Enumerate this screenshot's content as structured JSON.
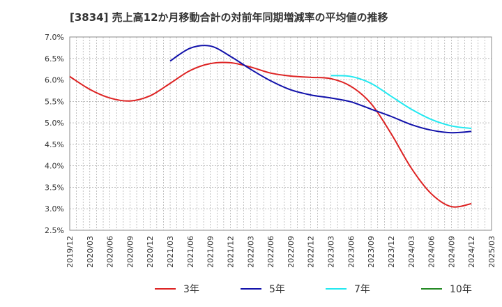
{
  "chart_data": {
    "type": "line",
    "title": "[3834]  売上高12か月移動合計の対前年同期増減率の平均値の推移",
    "xlabel": "",
    "ylabel": "",
    "x_ticks": [
      "2019/12",
      "2020/03",
      "2020/06",
      "2020/09",
      "2020/12",
      "2021/03",
      "2021/06",
      "2021/09",
      "2021/12",
      "2022/03",
      "2022/06",
      "2022/09",
      "2022/12",
      "2023/03",
      "2023/06",
      "2023/09",
      "2023/12",
      "2024/03",
      "2024/06",
      "2024/09",
      "2024/12",
      "2025/03"
    ],
    "y_ticks": [
      "2.5%",
      "3.0%",
      "3.5%",
      "4.0%",
      "4.5%",
      "5.0%",
      "5.5%",
      "6.0%",
      "6.5%",
      "7.0%"
    ],
    "ylim": [
      2.5,
      7.0
    ],
    "grid": true,
    "legend_position": "bottom",
    "series": [
      {
        "name": "3年",
        "color": "#dd2222",
        "x": [
          "2019/12",
          "2020/03",
          "2020/06",
          "2020/09",
          "2020/12",
          "2021/03",
          "2021/06",
          "2021/09",
          "2021/12",
          "2022/03",
          "2022/06",
          "2022/09",
          "2022/12",
          "2023/03",
          "2023/06",
          "2023/09",
          "2023/12",
          "2024/03",
          "2024/06",
          "2024/09",
          "2024/12"
        ],
        "values": [
          6.08,
          5.78,
          5.58,
          5.51,
          5.63,
          5.92,
          6.22,
          6.38,
          6.4,
          6.3,
          6.16,
          6.09,
          6.06,
          6.03,
          5.85,
          5.45,
          4.75,
          3.95,
          3.35,
          3.05,
          3.12
        ]
      },
      {
        "name": "5年",
        "color": "#1111aa",
        "x": [
          "2021/03",
          "2021/06",
          "2021/09",
          "2021/12",
          "2022/03",
          "2022/06",
          "2022/09",
          "2022/12",
          "2023/03",
          "2023/06",
          "2023/09",
          "2023/12",
          "2024/03",
          "2024/06",
          "2024/09",
          "2024/12"
        ],
        "values": [
          6.44,
          6.74,
          6.79,
          6.55,
          6.25,
          5.98,
          5.77,
          5.65,
          5.58,
          5.49,
          5.32,
          5.15,
          4.96,
          4.83,
          4.77,
          4.8
        ]
      },
      {
        "name": "7年",
        "color": "#22e8f0",
        "x": [
          "2023/03",
          "2023/06",
          "2023/09",
          "2023/12",
          "2024/03",
          "2024/06",
          "2024/09",
          "2024/12"
        ],
        "values": [
          6.1,
          6.08,
          5.92,
          5.62,
          5.32,
          5.08,
          4.93,
          4.87
        ]
      },
      {
        "name": "10年",
        "color": "#228822",
        "x": [],
        "values": []
      }
    ]
  }
}
